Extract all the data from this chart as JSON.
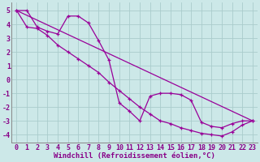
{
  "bg_color": "#cce8e8",
  "grid_color": "#aacccc",
  "line_color": "#990099",
  "xlabel": "Windchill (Refroidissement éolien,°C)",
  "ytick_vals": [
    -4,
    -3,
    -2,
    -1,
    0,
    1,
    2,
    3,
    4,
    5
  ],
  "xlim": [
    -0.5,
    23.5
  ],
  "ylim": [
    -4.6,
    5.6
  ],
  "xtick_vals": [
    0,
    1,
    2,
    3,
    4,
    5,
    6,
    7,
    8,
    9,
    10,
    11,
    12,
    13,
    14,
    15,
    16,
    17,
    18,
    19,
    20,
    21,
    22,
    23
  ],
  "line1_x": [
    0,
    1,
    2,
    3,
    4,
    5,
    6,
    7,
    8,
    9,
    10,
    11,
    12,
    13,
    14,
    15,
    16,
    17,
    18,
    19,
    20,
    21,
    22,
    23
  ],
  "line1_y": [
    5.0,
    5.0,
    3.8,
    3.5,
    3.3,
    4.6,
    4.6,
    4.1,
    2.8,
    1.4,
    -1.7,
    -2.3,
    -3.0,
    -1.2,
    -1.0,
    -1.0,
    -1.1,
    -1.5,
    -3.1,
    -3.4,
    -3.5,
    -3.2,
    -3.0,
    -3.0
  ],
  "line2_x": [
    0,
    1,
    2,
    3,
    4,
    5,
    6,
    7,
    8,
    9,
    10,
    11,
    12,
    13,
    14,
    15,
    16,
    17,
    18,
    19,
    20,
    21,
    22,
    23
  ],
  "line2_y": [
    5.0,
    3.8,
    3.7,
    3.2,
    2.5,
    2.0,
    1.5,
    1.0,
    0.5,
    -0.2,
    -0.8,
    -1.4,
    -2.0,
    -2.5,
    -3.0,
    -3.2,
    -3.5,
    -3.7,
    -3.9,
    -4.0,
    -4.1,
    -3.8,
    -3.3,
    -3.0
  ],
  "line3_x": [
    0,
    23
  ],
  "line3_y": [
    5.0,
    -3.0
  ],
  "font_family": "monospace",
  "xlabel_fontsize": 6.5,
  "tick_fontsize": 6.0,
  "tick_color": "#880088"
}
